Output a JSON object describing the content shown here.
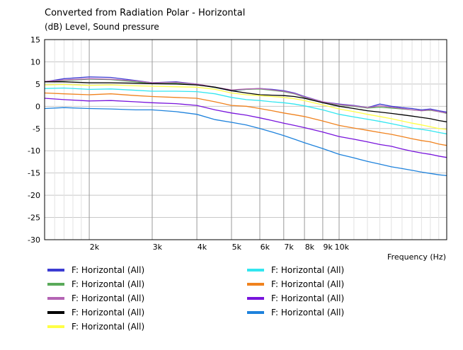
{
  "chart_data": {
    "type": "line",
    "title": "Converted from Radiation Polar - Horizontal",
    "ylabel": "(dB)  Level, Sound pressure",
    "xlabel": "Frequency  (Hz)",
    "xscale": "log",
    "xlim": [
      1500,
      20000
    ],
    "ylim": [
      -30,
      15
    ],
    "grid": true,
    "legend_position": "bottom",
    "x_ticks": [
      {
        "label": "2k",
        "value": 2000
      },
      {
        "label": "3k",
        "value": 3000
      },
      {
        "label": "4k",
        "value": 4000
      },
      {
        "label": "5k",
        "value": 5000
      },
      {
        "label": "6k",
        "value": 6000
      },
      {
        "label": "7k",
        "value": 7000
      },
      {
        "label": "8k",
        "value": 8000
      },
      {
        "label": "9k",
        "value": 9000
      },
      {
        "label": "10k",
        "value": 10000
      }
    ],
    "y_ticks": [
      15,
      10,
      5,
      0,
      -5,
      -10,
      -15,
      -20,
      -25,
      -30
    ],
    "x": [
      1500,
      1700,
      2000,
      2300,
      2700,
      3000,
      3500,
      4000,
      4500,
      5000,
      5500,
      6000,
      6500,
      7000,
      7500,
      8000,
      9000,
      10000,
      11000,
      12000,
      13000,
      14000,
      15000,
      16000,
      17000,
      18000,
      19000,
      20000
    ],
    "series": [
      {
        "name": "F: Horizontal  (All)",
        "color": "#3c3cd2",
        "values": [
          5.5,
          6.2,
          6.6,
          6.5,
          5.8,
          5.3,
          5.5,
          5.0,
          4.2,
          3.5,
          3.8,
          4.0,
          3.8,
          3.5,
          3.0,
          2.2,
          1.0,
          0.5,
          0.2,
          -0.3,
          0.5,
          0.0,
          -0.3,
          -0.5,
          -0.8,
          -0.6,
          -1.0,
          -1.3
        ]
      },
      {
        "name": "F: Horizontal  (All)",
        "color": "#5aaa5a",
        "values": [
          5.5,
          5.8,
          6.1,
          6.0,
          5.5,
          5.1,
          5.2,
          4.9,
          4.2,
          3.6,
          3.8,
          3.9,
          3.6,
          3.3,
          2.8,
          2.0,
          0.9,
          0.3,
          0.0,
          -0.4,
          -0.2,
          -0.4,
          -0.6,
          -0.8,
          -1.0,
          -0.9,
          -1.2,
          -1.6
        ]
      },
      {
        "name": "F: Horizontal  (All)",
        "color": "#b464b4",
        "values": [
          5.6,
          5.9,
          6.2,
          6.1,
          5.7,
          5.3,
          5.4,
          5.0,
          4.3,
          3.7,
          3.9,
          4.0,
          3.7,
          3.4,
          2.9,
          2.1,
          1.0,
          0.4,
          0.1,
          -0.3,
          0.1,
          -0.2,
          -0.5,
          -0.8,
          -1.0,
          -0.8,
          -1.2,
          -1.5
        ]
      },
      {
        "name": "F: Horizontal  (All)",
        "color": "#000000",
        "values": [
          5.5,
          5.5,
          5.3,
          5.3,
          5.2,
          5.1,
          5.0,
          4.8,
          4.3,
          3.5,
          3.0,
          2.6,
          2.5,
          2.4,
          2.2,
          1.8,
          0.8,
          0.0,
          -0.5,
          -1.0,
          -1.3,
          -1.6,
          -1.9,
          -2.2,
          -2.5,
          -2.8,
          -3.2,
          -3.5
        ]
      },
      {
        "name": "F: Horizontal  (All)",
        "color": "#ffff46",
        "values": [
          4.8,
          4.9,
          4.7,
          4.8,
          4.6,
          4.5,
          4.4,
          4.3,
          3.8,
          3.0,
          2.6,
          2.4,
          2.2,
          2.0,
          1.7,
          1.3,
          0.3,
          -0.6,
          -1.2,
          -1.8,
          -2.3,
          -2.8,
          -3.3,
          -3.8,
          -4.2,
          -4.6,
          -5.0,
          -5.2
        ]
      },
      {
        "name": "F: Horizontal  (All)",
        "color": "#32e6f0",
        "values": [
          4.0,
          4.1,
          3.8,
          3.9,
          3.6,
          3.4,
          3.4,
          3.3,
          2.8,
          2.0,
          1.5,
          1.3,
          1.0,
          0.8,
          0.5,
          0.1,
          -0.8,
          -1.8,
          -2.4,
          -2.9,
          -3.4,
          -3.9,
          -4.4,
          -4.9,
          -5.2,
          -5.5,
          -5.9,
          -6.2
        ]
      },
      {
        "name": "F: Horizontal  (All)",
        "color": "#f0821e",
        "values": [
          3.0,
          2.8,
          2.6,
          2.8,
          2.4,
          2.2,
          2.0,
          1.8,
          1.0,
          0.2,
          0.0,
          -0.5,
          -1.0,
          -1.5,
          -1.9,
          -2.3,
          -3.3,
          -4.3,
          -4.9,
          -5.4,
          -5.9,
          -6.3,
          -6.8,
          -7.3,
          -7.7,
          -8.0,
          -8.5,
          -8.8
        ]
      },
      {
        "name": "F: Horizontal  (All)",
        "color": "#7814dc",
        "values": [
          1.8,
          1.5,
          1.2,
          1.3,
          1.0,
          0.8,
          0.6,
          0.2,
          -0.8,
          -1.5,
          -2.0,
          -2.6,
          -3.2,
          -3.8,
          -4.3,
          -4.8,
          -5.8,
          -6.8,
          -7.4,
          -8.0,
          -8.6,
          -9.0,
          -9.6,
          -10.1,
          -10.5,
          -10.8,
          -11.2,
          -11.5
        ]
      },
      {
        "name": "F: Horizontal  (All)",
        "color": "#1e82dc",
        "values": [
          -0.5,
          -0.3,
          -0.5,
          -0.6,
          -0.8,
          -0.8,
          -1.2,
          -1.8,
          -3.0,
          -3.6,
          -4.2,
          -5.0,
          -5.8,
          -6.6,
          -7.4,
          -8.2,
          -9.5,
          -10.8,
          -11.6,
          -12.4,
          -13.0,
          -13.6,
          -14.0,
          -14.4,
          -14.8,
          -15.1,
          -15.4,
          -15.6
        ]
      }
    ]
  }
}
